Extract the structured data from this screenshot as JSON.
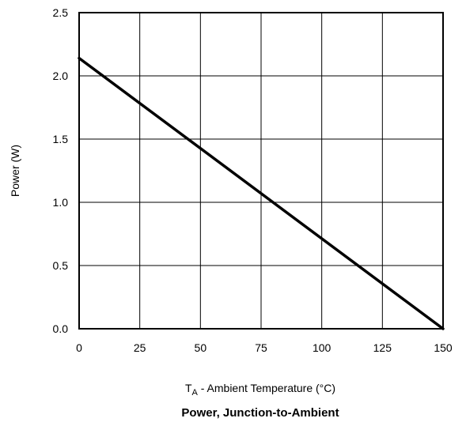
{
  "chart_data": {
    "type": "line",
    "title": "Power, Junction-to-Ambient",
    "xlabel_main": "T",
    "xlabel_sub": "A",
    "xlabel_rest": " - Ambient Temperature (°C)",
    "ylabel": "Power (W)",
    "xlim": [
      0,
      150
    ],
    "ylim": [
      0,
      2.5
    ],
    "grid": true,
    "x_ticks": [
      "0",
      "25",
      "50",
      "75",
      "100",
      "125",
      "150"
    ],
    "y_ticks": [
      "0.0",
      "0.5",
      "1.0",
      "1.5",
      "2.0",
      "2.5"
    ],
    "x_tick_values": [
      0,
      25,
      50,
      75,
      100,
      125,
      150
    ],
    "y_tick_values": [
      0,
      0.5,
      1.0,
      1.5,
      2.0,
      2.5
    ],
    "series": [
      {
        "x": [
          0,
          150
        ],
        "y": [
          2.14,
          0.0
        ]
      }
    ],
    "line_color": "#000000"
  }
}
